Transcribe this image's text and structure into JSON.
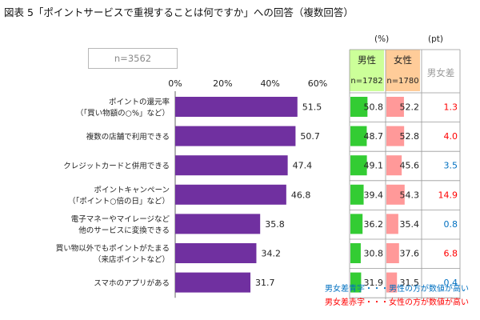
{
  "title": "図表 5「ポイントサービスで重視することは何ですか」への回答（複数回答）",
  "n_total": "n=3562",
  "unit_pct": "(%)",
  "unit_pt": "(pt)",
  "columns": {
    "male": {
      "label": "男性",
      "n": "n=1782"
    },
    "female": {
      "label": "女性",
      "n": "n=1780"
    },
    "diff": {
      "label": "男女差"
    }
  },
  "notes": {
    "blue": "男女差青字・・・男性の方が数値が高い",
    "red": "男女差赤字・・・女性の方が数値が高い"
  },
  "colors": {
    "bar": "#7030a0",
    "male_bar": "#33cc33",
    "female_bar": "#ff9999",
    "male_header": "#ccff99",
    "female_header": "#ffcc99",
    "diff_blue": "#0070c0",
    "diff_red": "#ff0000"
  },
  "chart_data": [
    {
      "type": "bar",
      "orientation": "horizontal",
      "categories": [
        [
          "ポイントの還元率",
          "（「買い物額の○%」など）"
        ],
        [
          "複数の店舗で利用できる"
        ],
        [
          "クレジットカードと併用できる"
        ],
        [
          "ポイントキャンペーン",
          "（「ポイント○倍の日」など）"
        ],
        [
          "電子マネーやマイレージなど",
          "他のサービスに変換できる"
        ],
        [
          "買い物以外でもポイントがたまる",
          "（来店ポイントなど）"
        ],
        [
          "スマホのアプリがある"
        ]
      ],
      "values": [
        51.5,
        50.7,
        47.4,
        46.8,
        35.8,
        34.2,
        31.7
      ],
      "xlim": [
        0,
        60
      ],
      "xticks": [
        "0%",
        "20%",
        "40%",
        "60%"
      ],
      "grid": false
    },
    {
      "type": "table",
      "series": [
        {
          "name": "男性",
          "values": [
            50.8,
            48.7,
            49.1,
            39.4,
            36.2,
            30.8,
            31.9
          ]
        },
        {
          "name": "女性",
          "values": [
            52.2,
            52.8,
            45.6,
            54.3,
            35.4,
            37.6,
            31.5
          ]
        },
        {
          "name": "男女差",
          "values": [
            1.3,
            4.0,
            3.5,
            14.9,
            0.8,
            6.8,
            0.4
          ]
        }
      ],
      "diff_colors": [
        "red",
        "red",
        "blue",
        "red",
        "blue",
        "red",
        "blue"
      ],
      "xlim": [
        0,
        100
      ]
    }
  ]
}
